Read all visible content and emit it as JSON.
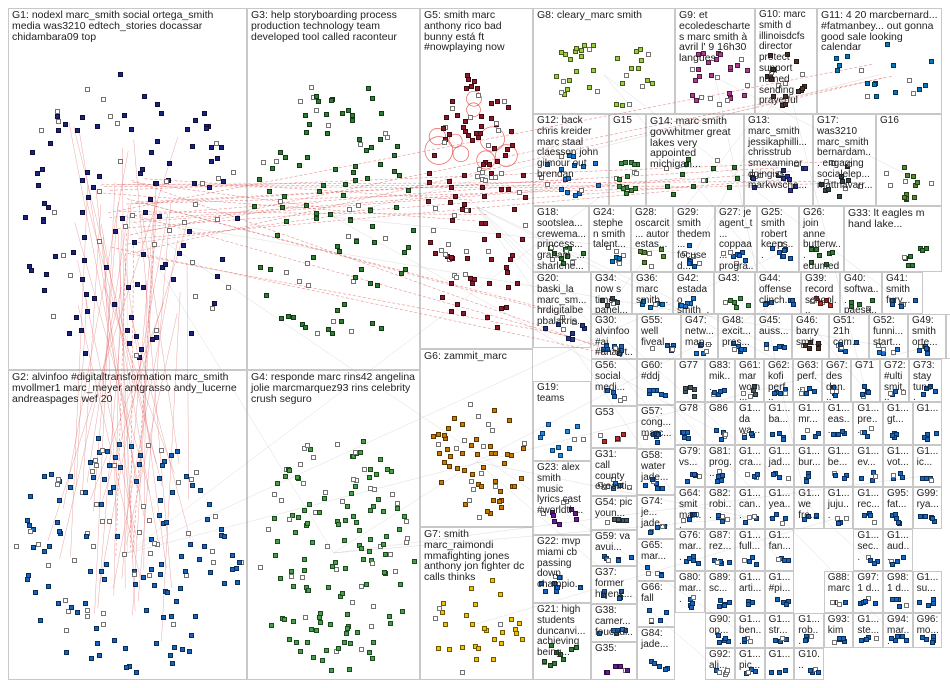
{
  "image_title": "",
  "edge_color": "#e06060",
  "groups": [
    {
      "id": "G1",
      "label": "G1: nodexl marc_smith social ortega_smith media was3210 edtech_stories docassar chidambara09 top",
      "color": "#1a237e",
      "nodes": 130
    },
    {
      "id": "G2",
      "label": "G2: alvinfoo #digitaltransformation marc_smith mvollmer1 marc_meyer antgrasso andy_lucerne andreaspages wef 20",
      "color": "#1565c0",
      "nodes": 160
    },
    {
      "id": "G3",
      "label": "G3: help storyboarding process production technology team developed tool called raconteur",
      "color": "#2e7d32",
      "nodes": 110
    },
    {
      "id": "G4",
      "label": "G4: responde marc rins42 angelina jolie marcmarquez93 rins celebrity crush seguro",
      "color": "#43a047",
      "nodes": 150
    },
    {
      "id": "G5",
      "label": "G5: smith marc anthony rico bad bunny está ft #nowplaying now",
      "color": "#8b1a2b",
      "nodes": 120
    },
    {
      "id": "G6",
      "label": "G6: zammit_marc",
      "color": "#c77800",
      "nodes": 60
    },
    {
      "id": "G7",
      "label": "G7: smith marc_raimondi mmafighting jones anthony jon fighter dc calls thinks",
      "color": "#f2c200",
      "nodes": 30
    },
    {
      "id": "G8",
      "label": "G8: cleary_marc smith",
      "color": "#9ccc3f",
      "nodes": 35
    },
    {
      "id": "G9",
      "label": "G9: et ecoledeschartes marc smith à avril l' 9 16h30 langues",
      "color": "#b03b8e",
      "nodes": 28
    },
    {
      "id": "G10",
      "label": "G10: marc smith d illinoisdcfs director protect support named sending prayerful",
      "color": "#4e342e",
      "nodes": 20
    },
    {
      "id": "G11",
      "label": "G11: 4 20 marcbernard... #fatmanbey... out gonna good sale looking calendar",
      "color": "#0277bd",
      "nodes": 18
    },
    {
      "id": "G12",
      "label": "G12: back chris kreider marc staal claesson john gilmour out brendan",
      "color": "#1976d2",
      "nodes": 18
    },
    {
      "id": "G13",
      "label": "G13: marc_smith jessikaphilli... chrisstrub smexaminer dgingiss markwscha...",
      "color": "#283593",
      "nodes": 16
    },
    {
      "id": "G14",
      "label": "G14: marc smith govwhitmer great lakes very appointed michigan...",
      "color": "#2e7d32",
      "nodes": 14
    },
    {
      "id": "G15",
      "label": "G15",
      "color": "#388e3c",
      "nodes": 16
    },
    {
      "id": "G16",
      "label": "G16",
      "color": "#558b2f",
      "nodes": 14
    },
    {
      "id": "G17",
      "label": "G17: was3210 marc_smith bernardam... engaging socialelep... mattnavarr...",
      "color": "#37474f",
      "nodes": 14
    },
    {
      "id": "G18",
      "label": "G18: sootslea... crewema... princess... graham_... sharlene... marc_co...",
      "color": "#2e7d32",
      "nodes": 12
    },
    {
      "id": "G19",
      "label": "G19: teams",
      "color": "#1e88e5",
      "nodes": 12
    },
    {
      "id": "G20",
      "label": "G20: baski_la marc_sm... hrdigitalbe pbalakris...",
      "color": "#283593",
      "nodes": 10
    },
    {
      "id": "G21",
      "label": "G21: high students duncanvi... achieving being...",
      "color": "#2e7d32",
      "nodes": 10
    },
    {
      "id": "G22",
      "label": "G22: mvp miami cb passing down champio...",
      "color": "#1565c0",
      "nodes": 10
    },
    {
      "id": "G23",
      "label": "G23: alex smith music lyrics cast #worldth...",
      "color": "#6a1b9a",
      "nodes": 10
    },
    {
      "id": "G24",
      "label": "G24: stephen smith talent...",
      "color": "#0277bd",
      "nodes": 8
    },
    {
      "id": "G25",
      "label": "G25: smith robert keeps...",
      "color": "#1565c0",
      "nodes": 8
    },
    {
      "id": "G26",
      "label": "G26: join anne butterw... edumed...",
      "color": "#2e7d32",
      "nodes": 8
    },
    {
      "id": "G27",
      "label": "G27: je agent_t... coppaa... progra...",
      "color": "#1565c0",
      "nodes": 8
    },
    {
      "id": "G28",
      "label": "G28: oscarcit... autor estas...",
      "color": "#558b2f",
      "nodes": 8
    },
    {
      "id": "G29",
      "label": "G29: smith thedem... focused...",
      "color": "#1565c0",
      "nodes": 8
    },
    {
      "id": "G30",
      "label": "G30: alvinfoo #ai #analyt...",
      "color": "#1565c0",
      "nodes": 8
    },
    {
      "id": "G31",
      "label": "G31: call county executi...",
      "color": "#1976d2",
      "nodes": 8
    },
    {
      "id": "G33",
      "label": "G33: lt eagles m hand lake...",
      "color": "#2e7d32",
      "nodes": 8
    },
    {
      "id": "G34",
      "label": "G34: now s time panel...",
      "color": "#455a64",
      "nodes": 6
    },
    {
      "id": "G35",
      "label": "G35:",
      "color": "#6a1b9a",
      "nodes": 6
    },
    {
      "id": "G36",
      "label": "G36: marc smith...",
      "color": "#0277bd",
      "nodes": 6
    },
    {
      "id": "G37",
      "label": "G37: former hvjenk...",
      "color": "#1565c0",
      "nodes": 6
    },
    {
      "id": "G38",
      "label": "G38: camer... foucaul...",
      "color": "#1976d2",
      "nodes": 6
    },
    {
      "id": "G39",
      "label": "G39: record school...",
      "color": "#c62828",
      "nodes": 6
    },
    {
      "id": "G40",
      "label": "G40: softwa... paesa...",
      "color": "#2e7d32",
      "nodes": 6
    },
    {
      "id": "G41",
      "label": "G41: smith fury...",
      "color": "#1565c0",
      "nodes": 6
    },
    {
      "id": "G42",
      "label": "G42: estadao smith_...",
      "color": "#1976d2",
      "nodes": 6
    },
    {
      "id": "G43",
      "label": "G43:",
      "color": "#388e3c",
      "nodes": 6
    },
    {
      "id": "G44",
      "label": "G44: offense clinch...",
      "color": "#1565c0",
      "nodes": 6
    },
    {
      "id": "G45",
      "label": "G45: auss...",
      "color": "#1565c0",
      "nodes": 6
    },
    {
      "id": "G46",
      "label": "G46: barry smit...",
      "color": "#4e342e",
      "nodes": 6
    },
    {
      "id": "G47",
      "label": "G47: netw... map...",
      "color": "#1976d2",
      "nodes": 6
    },
    {
      "id": "G48",
      "label": "G48: excit... pres...",
      "color": "#1565c0",
      "nodes": 6
    },
    {
      "id": "G49",
      "label": "G49: smith orte...",
      "color": "#1565c0",
      "nodes": 6
    },
    {
      "id": "G50",
      "label": "G50: bry #nec...",
      "color": "#1565c0",
      "nodes": 6
    },
    {
      "id": "G51",
      "label": "G51: 21h com...",
      "color": "#1565c0",
      "nodes": 6
    },
    {
      "id": "G52",
      "label": "G52: funni... start...",
      "color": "#1976d2",
      "nodes": 6
    },
    {
      "id": "G53",
      "label": "G53",
      "color": "#c62828",
      "nodes": 6
    },
    {
      "id": "G54",
      "label": "G54: pic youn...",
      "color": "#455a64",
      "nodes": 6
    },
    {
      "id": "G55",
      "label": "G55: well fiveal...",
      "color": "#1565c0",
      "nodes": 6
    },
    {
      "id": "G56",
      "label": "G56: social medi...",
      "color": "#1565c0",
      "nodes": 6
    },
    {
      "id": "G57",
      "label": "G57: cong... marc...",
      "color": "#1565c0",
      "nodes": 6
    },
    {
      "id": "G58",
      "label": "G58: water jade...",
      "color": "#1565c0",
      "nodes": 6
    },
    {
      "id": "G59",
      "label": "G59: va avui...",
      "color": "#1565c0",
      "nodes": 6
    },
    {
      "id": "G60",
      "label": "G60: #ddj",
      "color": "#1565c0",
      "nodes": 6
    },
    {
      "id": "G61",
      "label": "G61: mar wom...",
      "color": "#455a64",
      "nodes": 5
    },
    {
      "id": "G62",
      "label": "G62: kofi perf...",
      "color": "#1565c0",
      "nodes": 5
    },
    {
      "id": "G63",
      "label": "G63: perf...",
      "color": "#1565c0",
      "nodes": 5
    },
    {
      "id": "G64",
      "label": "G64: smit mar...",
      "color": "#1565c0",
      "nodes": 5
    },
    {
      "id": "G65",
      "label": "G65: mar...",
      "color": "#1565c0",
      "nodes": 5
    },
    {
      "id": "G66",
      "label": "G66: fall",
      "color": "#1565c0",
      "nodes": 5
    },
    {
      "id": "G67",
      "label": "G67: des don...",
      "color": "#1565c0",
      "nodes": 5
    },
    {
      "id": "G71",
      "label": "G71",
      "color": "#1565c0",
      "nodes": 5
    },
    {
      "id": "G72",
      "label": "G72: #ulti smit...",
      "color": "#1565c0",
      "nodes": 5
    },
    {
      "id": "G73",
      "label": "G73: stay tune...",
      "color": "#1565c0",
      "nodes": 5
    },
    {
      "id": "G74",
      "label": "G74: je... jade...",
      "color": "#1565c0",
      "nodes": 5
    },
    {
      "id": "G76",
      "label": "G76: mar...",
      "color": "#1565c0",
      "nodes": 5
    },
    {
      "id": "G77",
      "label": "G77",
      "color": "#455a64",
      "nodes": 5
    },
    {
      "id": "G78",
      "label": "G78",
      "color": "#1565c0",
      "nodes": 5
    },
    {
      "id": "G79",
      "label": "G79: vs...",
      "color": "#1565c0",
      "nodes": 5
    },
    {
      "id": "G80",
      "label": "G80: mar...",
      "color": "#1565c0",
      "nodes": 5
    },
    {
      "id": "G81",
      "label": "G81: prog...",
      "color": "#1565c0",
      "nodes": 5
    },
    {
      "id": "G82",
      "label": "G82: robi...",
      "color": "#1565c0",
      "nodes": 5
    },
    {
      "id": "G83",
      "label": "G83: mik...",
      "color": "#1565c0",
      "nodes": 5
    },
    {
      "id": "G84",
      "label": "G84: jade...",
      "color": "#1565c0",
      "nodes": 5
    },
    {
      "id": "G86",
      "label": "G86",
      "color": "#1565c0",
      "nodes": 5
    },
    {
      "id": "G87",
      "label": "G87: rez...",
      "color": "#1565c0",
      "nodes": 5
    },
    {
      "id": "G88",
      "label": "G88: marc",
      "color": "#1565c0",
      "nodes": 5
    },
    {
      "id": "G89",
      "label": "G89: sc...",
      "color": "#1565c0",
      "nodes": 5
    },
    {
      "id": "G90",
      "label": "G90: op...",
      "color": "#1565c0",
      "nodes": 5
    },
    {
      "id": "G92",
      "label": "G92: ali...",
      "color": "#1565c0",
      "nodes": 5
    },
    {
      "id": "G93",
      "label": "G93: kim",
      "color": "#1565c0",
      "nodes": 5
    },
    {
      "id": "G94",
      "label": "G94: mar...",
      "color": "#1565c0",
      "nodes": 5
    },
    {
      "id": "G95",
      "label": "G95: fat...",
      "color": "#1565c0",
      "nodes": 5
    },
    {
      "id": "G96",
      "label": "G96: mo...",
      "color": "#1565c0",
      "nodes": 5
    },
    {
      "id": "G97",
      "label": "G97: 1 d...",
      "color": "#1565c0",
      "nodes": 5
    },
    {
      "id": "G98",
      "label": "G98: 1 d...",
      "color": "#1565c0",
      "nodes": 5
    },
    {
      "id": "G99",
      "label": "G99: rya...",
      "color": "#1565c0",
      "nodes": 5
    },
    {
      "id": "G1a",
      "label": "G1... da wa...",
      "color": "#1565c0",
      "nodes": 4
    },
    {
      "id": "G1b",
      "label": "G1... ba...",
      "color": "#1565c0",
      "nodes": 4
    },
    {
      "id": "G1c",
      "label": "G1... mr...",
      "color": "#1565c0",
      "nodes": 4
    },
    {
      "id": "G1d",
      "label": "G1... eas...",
      "color": "#1565c0",
      "nodes": 4
    },
    {
      "id": "G1e",
      "label": "G1... pre...",
      "color": "#1565c0",
      "nodes": 4
    },
    {
      "id": "G1f",
      "label": "G1... gt...",
      "color": "#1565c0",
      "nodes": 4
    },
    {
      "id": "G1g",
      "label": "G1...",
      "color": "#1565c0",
      "nodes": 4
    },
    {
      "id": "G1h",
      "label": "G1... cra...",
      "color": "#1565c0",
      "nodes": 4
    },
    {
      "id": "G1i",
      "label": "G1... jad...",
      "color": "#1565c0",
      "nodes": 4
    },
    {
      "id": "G1j",
      "label": "G1... bur...",
      "color": "#1565c0",
      "nodes": 4
    },
    {
      "id": "G1k",
      "label": "G1... be...",
      "color": "#1565c0",
      "nodes": 4
    },
    {
      "id": "G1l",
      "label": "G1... ev...",
      "color": "#1565c0",
      "nodes": 4
    },
    {
      "id": "G1m",
      "label": "G1... vot...",
      "color": "#1565c0",
      "nodes": 4
    },
    {
      "id": "G1n",
      "label": "G1... ic...",
      "color": "#1565c0",
      "nodes": 4
    },
    {
      "id": "G1o",
      "label": "G1... can...",
      "color": "#1565c0",
      "nodes": 4
    },
    {
      "id": "G1p",
      "label": "G1... yea...",
      "color": "#1565c0",
      "nodes": 4
    },
    {
      "id": "G1q",
      "label": "G1... we fre...",
      "color": "#1565c0",
      "nodes": 4
    },
    {
      "id": "G1r",
      "label": "G1... juju...",
      "color": "#1565c0",
      "nodes": 4
    },
    {
      "id": "G1s",
      "label": "G1... rec...",
      "color": "#1565c0",
      "nodes": 4
    },
    {
      "id": "G1t",
      "label": "G1... full...",
      "color": "#1565c0",
      "nodes": 4
    },
    {
      "id": "G1u",
      "label": "G1... fan...",
      "color": "#1565c0",
      "nodes": 4
    },
    {
      "id": "G1v",
      "label": "G1... sec...",
      "color": "#1565c0",
      "nodes": 4
    },
    {
      "id": "G1w",
      "label": "G1... aud...",
      "color": "#1565c0",
      "nodes": 4
    },
    {
      "id": "G1x",
      "label": "G1... arti...",
      "color": "#1565c0",
      "nodes": 4
    },
    {
      "id": "G1y",
      "label": "G1... #pi...",
      "color": "#1565c0",
      "nodes": 4
    },
    {
      "id": "G1z",
      "label": "G1... su...",
      "color": "#1565c0",
      "nodes": 4
    },
    {
      "id": "G1aa",
      "label": "G1... ben...",
      "color": "#1565c0",
      "nodes": 4
    },
    {
      "id": "G1ab",
      "label": "G1... str...",
      "color": "#1565c0",
      "nodes": 4
    },
    {
      "id": "G1ac",
      "label": "G1... rob...",
      "color": "#1565c0",
      "nodes": 4
    },
    {
      "id": "G1ad",
      "label": "G1... ste...",
      "color": "#1565c0",
      "nodes": 4
    },
    {
      "id": "G1ae",
      "label": "G1... pic...",
      "color": "#1565c0",
      "nodes": 4
    },
    {
      "id": "G1af",
      "label": "G1...",
      "color": "#1565c0",
      "nodes": 4
    },
    {
      "id": "G1ag",
      "label": "G10...",
      "color": "#1565c0",
      "nodes": 4
    }
  ]
}
